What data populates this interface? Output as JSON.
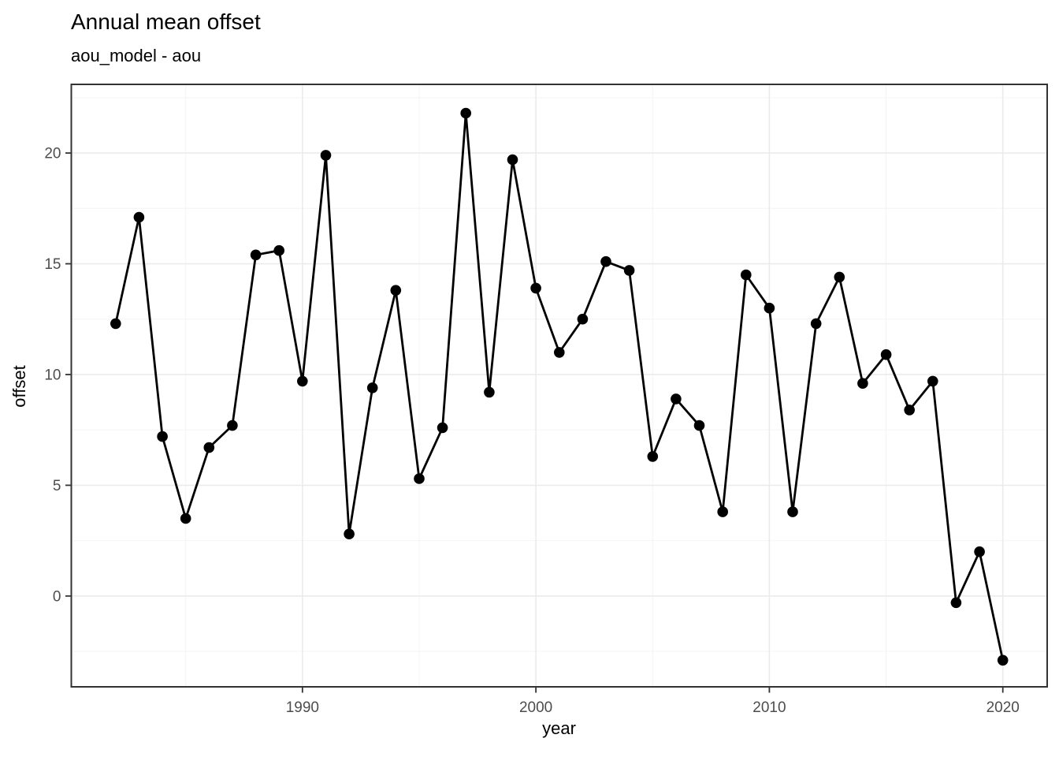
{
  "chart_data": {
    "type": "line",
    "title": "Annual mean offset",
    "subtitle": "aou_model - aou",
    "xlabel": "year",
    "ylabel": "offset",
    "x": [
      1982,
      1983,
      1984,
      1985,
      1986,
      1987,
      1988,
      1989,
      1990,
      1991,
      1992,
      1993,
      1994,
      1995,
      1996,
      1997,
      1998,
      1999,
      2000,
      2001,
      2002,
      2003,
      2004,
      2005,
      2006,
      2007,
      2008,
      2009,
      2010,
      2011,
      2012,
      2013,
      2014,
      2015,
      2016,
      2017,
      2018,
      2019,
      2020
    ],
    "values": [
      12.3,
      17.1,
      7.2,
      3.5,
      6.7,
      7.7,
      15.4,
      15.6,
      9.7,
      19.9,
      2.8,
      9.4,
      13.8,
      5.3,
      7.6,
      21.8,
      9.2,
      19.7,
      13.9,
      11.0,
      12.5,
      15.1,
      14.7,
      6.3,
      8.9,
      7.7,
      3.8,
      14.5,
      13.0,
      3.8,
      12.3,
      14.4,
      9.6,
      10.9,
      8.4,
      9.7,
      -0.3,
      2.0,
      -2.9
    ],
    "x_ticks": [
      1990,
      2000,
      2010,
      2020
    ],
    "x_minor_ticks": [
      1985,
      1995,
      2005,
      2015
    ],
    "y_ticks": [
      0,
      5,
      10,
      15,
      20
    ],
    "y_minor_ticks": [
      -2.5,
      2.5,
      7.5,
      12.5,
      17.5,
      22.5
    ],
    "x_range": [
      1980.1,
      2021.9
    ],
    "y_range": [
      -4.1,
      23.1
    ],
    "grid": true,
    "legend": "none",
    "marker": "point",
    "colors": {
      "line": "#000000",
      "point": "#000000",
      "panel_background": "#FFFFFF",
      "panel_border": "#333333",
      "grid_major": "#EBEBEB",
      "grid_minor": "#F4F4F4",
      "tick_mark": "#333333",
      "tick_label": "#4D4D4D",
      "text": "#000000",
      "figure_background": "#FFFFFF"
    }
  }
}
